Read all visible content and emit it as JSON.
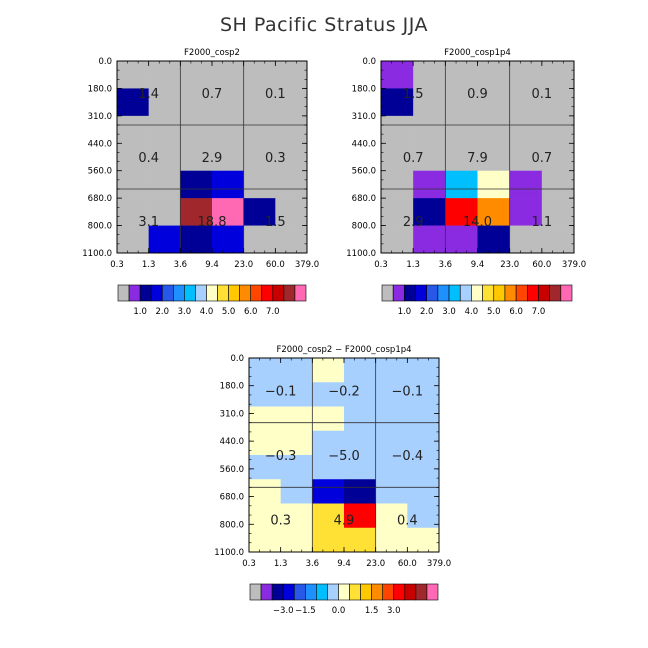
{
  "figure_title": "SH Pacific Stratus JJA",
  "colors": {
    "gray": "#bdbdbd",
    "violet": "#8a2be2",
    "navy": "#000096",
    "blue": "#0000dc",
    "royal": "#2858e8",
    "sky": "#1e90ff",
    "cyan": "#00bfff",
    "light_blue": "#a8d0ff",
    "pale_yellow": "#ffffc8",
    "yellow": "#ffe135",
    "gold": "#ffc800",
    "orange": "#ff8c00",
    "orange_red": "#ff4500",
    "red": "#ff0000",
    "dark_red": "#c80000",
    "brown": "#a0282d",
    "pink": "#ff69b4"
  },
  "chart_data": [
    {
      "type": "heatmap",
      "title": "F2000_cosp2",
      "x_ticks": [
        "0.3",
        "1.3",
        "3.6",
        "9.4",
        "23.0",
        "60.0",
        "379.0"
      ],
      "y_ticks": [
        "0.0",
        "180.0",
        "310.0",
        "440.0",
        "560.0",
        "680.0",
        "800.0",
        "1100.0"
      ],
      "cells": [
        [
          "gray",
          "gray",
          "gray",
          "gray",
          "gray",
          "gray"
        ],
        [
          "navy",
          "gray",
          "gray",
          "gray",
          "gray",
          "gray"
        ],
        [
          "gray",
          "gray",
          "gray",
          "gray",
          "gray",
          "gray"
        ],
        [
          "gray",
          "gray",
          "gray",
          "gray",
          "gray",
          "gray"
        ],
        [
          "gray",
          "gray",
          "navy",
          "blue",
          "gray",
          "gray"
        ],
        [
          "gray",
          "gray",
          "brown",
          "pink",
          "navy",
          "gray"
        ],
        [
          "gray",
          "blue",
          "navy",
          "blue",
          "gray",
          "gray"
        ]
      ],
      "annotations": [
        {
          "col": 0,
          "row": 0,
          "text": "1.4"
        },
        {
          "col": 1,
          "row": 0,
          "text": "0.7"
        },
        {
          "col": 2,
          "row": 0,
          "text": "0.1"
        },
        {
          "col": 0,
          "row": 1,
          "text": "0.4"
        },
        {
          "col": 1,
          "row": 1,
          "text": "2.9"
        },
        {
          "col": 2,
          "row": 1,
          "text": "0.3"
        },
        {
          "col": 0,
          "row": 2,
          "text": "3.1"
        },
        {
          "col": 1,
          "row": 2,
          "text": "18.8"
        },
        {
          "col": 2,
          "row": 2,
          "text": "1.5"
        }
      ],
      "colorbar": {
        "colors": [
          "gray",
          "violet",
          "navy",
          "blue",
          "royal",
          "sky",
          "cyan",
          "light_blue",
          "pale_yellow",
          "yellow",
          "gold",
          "orange",
          "orange_red",
          "red",
          "dark_red",
          "brown",
          "pink"
        ],
        "labels": [
          "1.0",
          "2.0",
          "3.0",
          "4.0",
          "5.0",
          "6.0",
          "7.0"
        ],
        "label_at": [
          2,
          4,
          6,
          8,
          10,
          12,
          14
        ]
      }
    },
    {
      "type": "heatmap",
      "title": "F2000_cosp1p4",
      "x_ticks": [
        "0.3",
        "1.3",
        "3.6",
        "9.4",
        "23.0",
        "60.0",
        "379.0"
      ],
      "y_ticks": [
        "0.0",
        "180.0",
        "310.0",
        "440.0",
        "560.0",
        "680.0",
        "800.0",
        "1100.0"
      ],
      "cells": [
        [
          "violet",
          "gray",
          "gray",
          "gray",
          "gray",
          "gray"
        ],
        [
          "navy",
          "gray",
          "gray",
          "gray",
          "gray",
          "gray"
        ],
        [
          "gray",
          "gray",
          "gray",
          "gray",
          "gray",
          "gray"
        ],
        [
          "gray",
          "gray",
          "gray",
          "gray",
          "gray",
          "gray"
        ],
        [
          "gray",
          "violet",
          "cyan",
          "pale_yellow",
          "violet",
          "gray"
        ],
        [
          "gray",
          "navy",
          "red",
          "orange",
          "violet",
          "gray"
        ],
        [
          "gray",
          "violet",
          "violet",
          "navy",
          "gray",
          "gray"
        ]
      ],
      "annotations": [
        {
          "col": 0,
          "row": 0,
          "text": "1.5"
        },
        {
          "col": 1,
          "row": 0,
          "text": "0.9"
        },
        {
          "col": 2,
          "row": 0,
          "text": "0.1"
        },
        {
          "col": 0,
          "row": 1,
          "text": "0.7"
        },
        {
          "col": 1,
          "row": 1,
          "text": "7.9"
        },
        {
          "col": 2,
          "row": 1,
          "text": "0.7"
        },
        {
          "col": 0,
          "row": 2,
          "text": "2.9"
        },
        {
          "col": 1,
          "row": 2,
          "text": "14.0"
        },
        {
          "col": 2,
          "row": 2,
          "text": "1.1"
        }
      ],
      "colorbar": {
        "colors": [
          "gray",
          "violet",
          "navy",
          "blue",
          "royal",
          "sky",
          "cyan",
          "light_blue",
          "pale_yellow",
          "yellow",
          "gold",
          "orange",
          "orange_red",
          "red",
          "dark_red",
          "brown",
          "pink"
        ],
        "labels": [
          "1.0",
          "2.0",
          "3.0",
          "4.0",
          "5.0",
          "6.0",
          "7.0"
        ],
        "label_at": [
          2,
          4,
          6,
          8,
          10,
          12,
          14
        ]
      }
    },
    {
      "type": "heatmap",
      "title": "F2000_cosp2 − F2000_cosp1p4",
      "x_ticks": [
        "0.3",
        "1.3",
        "3.6",
        "9.4",
        "23.0",
        "60.0",
        "379.0"
      ],
      "y_ticks": [
        "0.0",
        "180.0",
        "310.0",
        "440.0",
        "560.0",
        "680.0",
        "800.0",
        "1100.0"
      ],
      "cells": [
        [
          "light_blue",
          "light_blue",
          "pale_yellow",
          "light_blue",
          "light_blue",
          "light_blue"
        ],
        [
          "light_blue",
          "light_blue",
          "light_blue",
          "light_blue",
          "light_blue",
          "light_blue"
        ],
        [
          "pale_yellow",
          "pale_yellow",
          "pale_yellow",
          "light_blue",
          "light_blue",
          "light_blue"
        ],
        [
          "pale_yellow",
          "pale_yellow",
          "light_blue",
          "light_blue",
          "light_blue",
          "light_blue"
        ],
        [
          "light_blue",
          "light_blue",
          "light_blue",
          "light_blue",
          "light_blue",
          "light_blue"
        ],
        [
          "pale_yellow",
          "light_blue",
          "blue",
          "navy",
          "light_blue",
          "light_blue"
        ],
        [
          "pale_yellow",
          "pale_yellow",
          "yellow",
          "red",
          "pale_yellow",
          "light_blue"
        ],
        [
          "pale_yellow",
          "pale_yellow",
          "yellow",
          "yellow",
          "pale_yellow",
          "pale_yellow"
        ]
      ],
      "annotations": [
        {
          "col": 0,
          "row": 0,
          "text": "−0.1"
        },
        {
          "col": 1,
          "row": 0,
          "text": "−0.2"
        },
        {
          "col": 2,
          "row": 0,
          "text": "−0.1"
        },
        {
          "col": 0,
          "row": 1,
          "text": "−0.3"
        },
        {
          "col": 1,
          "row": 1,
          "text": "−5.0"
        },
        {
          "col": 2,
          "row": 1,
          "text": "−0.4"
        },
        {
          "col": 0,
          "row": 2,
          "text": "0.3"
        },
        {
          "col": 1,
          "row": 2,
          "text": "4.9"
        },
        {
          "col": 2,
          "row": 2,
          "text": "0.4"
        }
      ],
      "colorbar": {
        "colors": [
          "gray",
          "violet",
          "navy",
          "blue",
          "royal",
          "sky",
          "cyan",
          "light_blue",
          "pale_yellow",
          "yellow",
          "gold",
          "orange",
          "orange_red",
          "red",
          "dark_red",
          "brown",
          "pink"
        ],
        "labels": [
          "−3.0",
          "−1.5",
          "0.0",
          "1.5",
          "3.0"
        ],
        "label_at": [
          3,
          5,
          8,
          11,
          13
        ]
      }
    }
  ]
}
